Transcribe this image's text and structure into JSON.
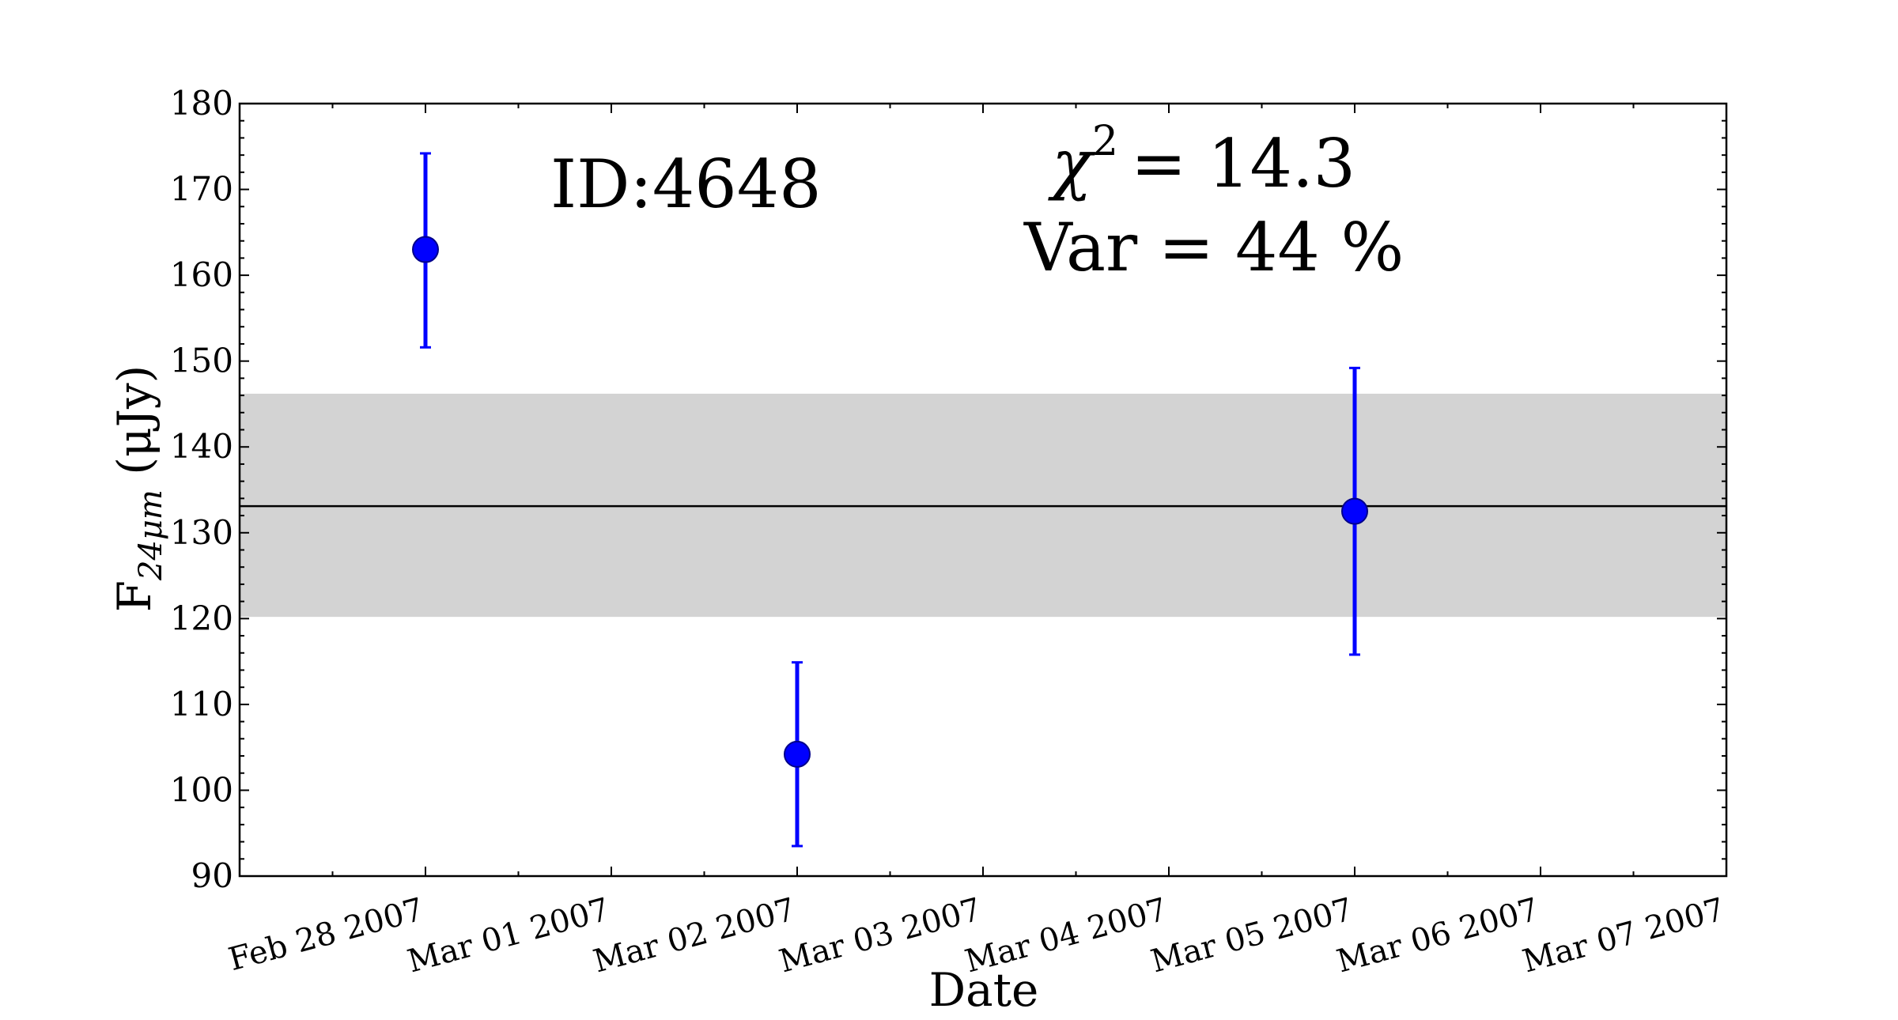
{
  "chart_data": {
    "type": "scatter",
    "title": "",
    "xlabel": "Date",
    "ylabel_main": "F",
    "ylabel_sub": "24μm",
    "ylabel_unit": "(μJy)",
    "xlim": [
      "2007-02-27T00:00",
      "2007-03-07T00:00"
    ],
    "ylim": [
      90,
      180
    ],
    "xticks": [
      "Feb 28 2007",
      "Mar 01 2007",
      "Mar 02 2007",
      "Mar 03 2007",
      "Mar 04 2007",
      "Mar 05 2007",
      "Mar 06 2007",
      "Mar 07 2007"
    ],
    "yticks": [
      90,
      100,
      110,
      120,
      130,
      140,
      150,
      160,
      170,
      180
    ],
    "points": [
      {
        "x": "2007-02-28T00:00",
        "y": 163.0,
        "err_low": 151.6,
        "err_high": 174.2
      },
      {
        "x": "2007-03-02T00:00",
        "y": 104.2,
        "err_low": 93.5,
        "err_high": 114.9
      },
      {
        "x": "2007-03-05T00:00",
        "y": 132.5,
        "err_low": 115.8,
        "err_high": 149.2
      }
    ],
    "mean_line": 133.1,
    "band": [
      120.2,
      146.2
    ],
    "grid": false,
    "colors": {
      "points": "#0000ff",
      "band": "#d3d3d3",
      "line": "#000000",
      "point_edge": "#00008b"
    },
    "annotations": {
      "id": "ID:4648",
      "chi2_symbol": "χ",
      "chi2_exp": "2",
      "chi2_value": "= 14.3",
      "var": "Var = 44 %"
    }
  }
}
